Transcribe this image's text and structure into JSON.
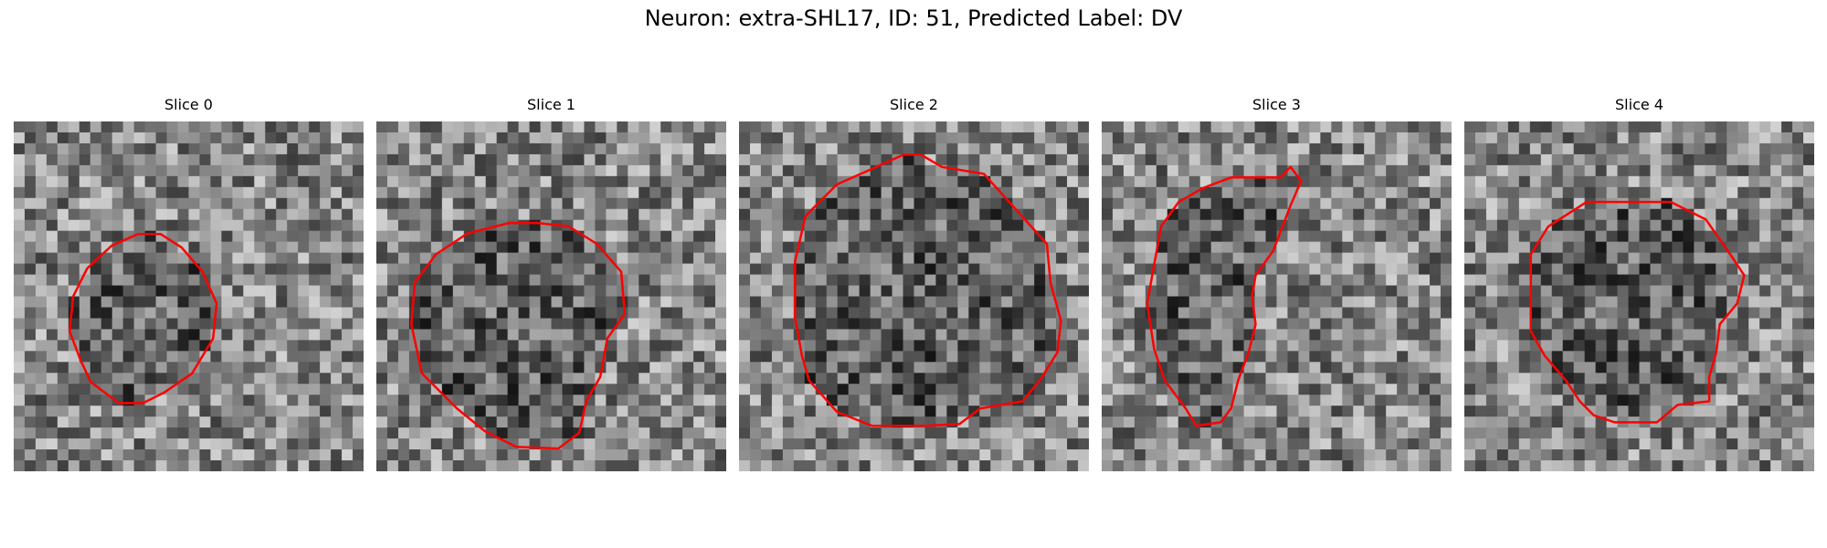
{
  "figure": {
    "title": "Neuron: extra-SHL17, ID: 51, Predicted Label: DV"
  },
  "colors": {
    "contour": "#ff0000",
    "colormap": "gray"
  },
  "panels": [
    {
      "title": "Slice 0",
      "seed": 11,
      "contour": [
        [
          0.355,
          0.322
        ],
        [
          0.42,
          0.322
        ],
        [
          0.48,
          0.36
        ],
        [
          0.54,
          0.43
        ],
        [
          0.58,
          0.52
        ],
        [
          0.57,
          0.62
        ],
        [
          0.51,
          0.72
        ],
        [
          0.43,
          0.775
        ],
        [
          0.37,
          0.805
        ],
        [
          0.3,
          0.805
        ],
        [
          0.22,
          0.745
        ],
        [
          0.19,
          0.68
        ],
        [
          0.16,
          0.6
        ],
        [
          0.17,
          0.5
        ],
        [
          0.21,
          0.42
        ],
        [
          0.28,
          0.355
        ]
      ]
    },
    {
      "title": "Slice 1",
      "seed": 22,
      "contour": [
        [
          0.38,
          0.29
        ],
        [
          0.46,
          0.29
        ],
        [
          0.55,
          0.3
        ],
        [
          0.63,
          0.35
        ],
        [
          0.7,
          0.43
        ],
        [
          0.71,
          0.55
        ],
        [
          0.66,
          0.62
        ],
        [
          0.64,
          0.73
        ],
        [
          0.6,
          0.8
        ],
        [
          0.58,
          0.89
        ],
        [
          0.52,
          0.935
        ],
        [
          0.4,
          0.93
        ],
        [
          0.31,
          0.885
        ],
        [
          0.23,
          0.82
        ],
        [
          0.13,
          0.72
        ],
        [
          0.1,
          0.58
        ],
        [
          0.11,
          0.46
        ],
        [
          0.17,
          0.38
        ],
        [
          0.26,
          0.32
        ]
      ]
    },
    {
      "title": "Slice 2",
      "seed": 33,
      "contour": [
        [
          0.47,
          0.095
        ],
        [
          0.52,
          0.095
        ],
        [
          0.58,
          0.13
        ],
        [
          0.7,
          0.15
        ],
        [
          0.79,
          0.25
        ],
        [
          0.88,
          0.35
        ],
        [
          0.89,
          0.46
        ],
        [
          0.92,
          0.57
        ],
        [
          0.91,
          0.66
        ],
        [
          0.86,
          0.74
        ],
        [
          0.81,
          0.8
        ],
        [
          0.69,
          0.82
        ],
        [
          0.63,
          0.865
        ],
        [
          0.53,
          0.87
        ],
        [
          0.38,
          0.87
        ],
        [
          0.28,
          0.83
        ],
        [
          0.2,
          0.74
        ],
        [
          0.18,
          0.67
        ],
        [
          0.16,
          0.56
        ],
        [
          0.16,
          0.4
        ],
        [
          0.19,
          0.27
        ],
        [
          0.28,
          0.18
        ],
        [
          0.37,
          0.14
        ]
      ]
    },
    {
      "title": "Slice 3",
      "seed": 44,
      "contour": [
        [
          0.37,
          0.16
        ],
        [
          0.51,
          0.16
        ],
        [
          0.54,
          0.13
        ],
        [
          0.57,
          0.17
        ],
        [
          0.54,
          0.24
        ],
        [
          0.49,
          0.37
        ],
        [
          0.44,
          0.44
        ],
        [
          0.43,
          0.5
        ],
        [
          0.44,
          0.58
        ],
        [
          0.42,
          0.66
        ],
        [
          0.39,
          0.74
        ],
        [
          0.37,
          0.82
        ],
        [
          0.34,
          0.86
        ],
        [
          0.27,
          0.87
        ],
        [
          0.24,
          0.82
        ],
        [
          0.18,
          0.74
        ],
        [
          0.15,
          0.65
        ],
        [
          0.13,
          0.52
        ],
        [
          0.15,
          0.41
        ],
        [
          0.17,
          0.3
        ],
        [
          0.22,
          0.23
        ],
        [
          0.29,
          0.19
        ]
      ]
    },
    {
      "title": "Slice 4",
      "seed": 55,
      "contour": [
        [
          0.35,
          0.23
        ],
        [
          0.5,
          0.23
        ],
        [
          0.59,
          0.23
        ],
        [
          0.69,
          0.28
        ],
        [
          0.76,
          0.38
        ],
        [
          0.8,
          0.44
        ],
        [
          0.78,
          0.52
        ],
        [
          0.73,
          0.58
        ],
        [
          0.72,
          0.66
        ],
        [
          0.7,
          0.73
        ],
        [
          0.7,
          0.8
        ],
        [
          0.61,
          0.81
        ],
        [
          0.55,
          0.86
        ],
        [
          0.43,
          0.86
        ],
        [
          0.37,
          0.84
        ],
        [
          0.33,
          0.8
        ],
        [
          0.29,
          0.74
        ],
        [
          0.23,
          0.67
        ],
        [
          0.19,
          0.6
        ],
        [
          0.19,
          0.5
        ],
        [
          0.19,
          0.38
        ],
        [
          0.24,
          0.3
        ]
      ]
    }
  ]
}
